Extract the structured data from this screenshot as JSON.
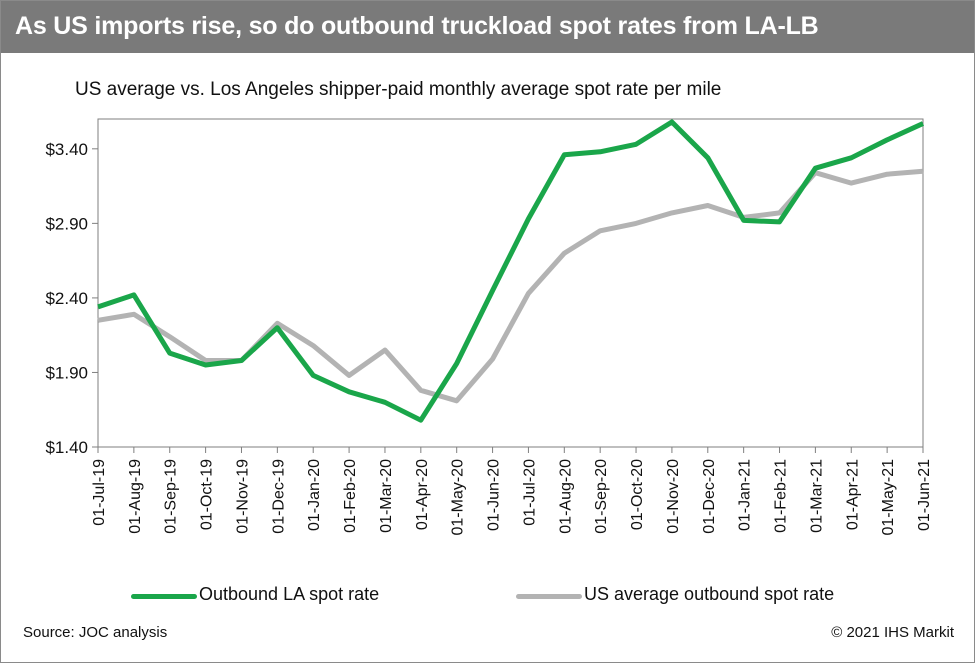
{
  "header": {
    "title": "As US imports rise, so do outbound truckload spot rates from LA-LB"
  },
  "chart_data": {
    "type": "line",
    "subtitle": "US average vs. Los Angeles shipper-paid monthly average spot rate per mile",
    "categories": [
      "01-Jul-19",
      "01-Aug-19",
      "01-Sep-19",
      "01-Oct-19",
      "01-Nov-19",
      "01-Dec-19",
      "01-Jan-20",
      "01-Feb-20",
      "01-Mar-20",
      "01-Apr-20",
      "01-May-20",
      "01-Jun-20",
      "01-Jul-20",
      "01-Aug-20",
      "01-Sep-20",
      "01-Oct-20",
      "01-Nov-20",
      "01-Dec-20",
      "01-Jan-21",
      "01-Feb-21",
      "01-Mar-21",
      "01-Apr-21",
      "01-May-21",
      "01-Jun-21"
    ],
    "series": [
      {
        "name": "Outbound LA spot rate",
        "color": "#1aa64a",
        "values": [
          2.34,
          2.42,
          2.03,
          1.95,
          1.98,
          2.2,
          1.88,
          1.77,
          1.7,
          1.58,
          1.96,
          2.45,
          2.93,
          3.36,
          3.38,
          3.43,
          3.58,
          3.34,
          2.92,
          2.91,
          3.27,
          3.34,
          3.46,
          3.57
        ]
      },
      {
        "name": "US average outbound spot rate",
        "color": "#b3b3b3",
        "values": [
          2.25,
          2.29,
          2.14,
          1.98,
          1.98,
          2.23,
          2.08,
          1.88,
          2.05,
          1.78,
          1.71,
          1.99,
          2.43,
          2.7,
          2.85,
          2.9,
          2.97,
          3.02,
          2.94,
          2.97,
          3.24,
          3.17,
          3.23,
          3.25
        ]
      }
    ],
    "ylim": [
      1.4,
      3.6
    ],
    "yticks": [
      1.4,
      1.9,
      2.4,
      2.9,
      3.4
    ],
    "ytick_labels": [
      "$1.40",
      "$1.90",
      "$2.40",
      "$2.90",
      "$3.40"
    ],
    "grid": false,
    "legend_position": "bottom"
  },
  "footer": {
    "source": "Source: JOC analysis",
    "copyright": "© 2021 IHS Markit"
  }
}
